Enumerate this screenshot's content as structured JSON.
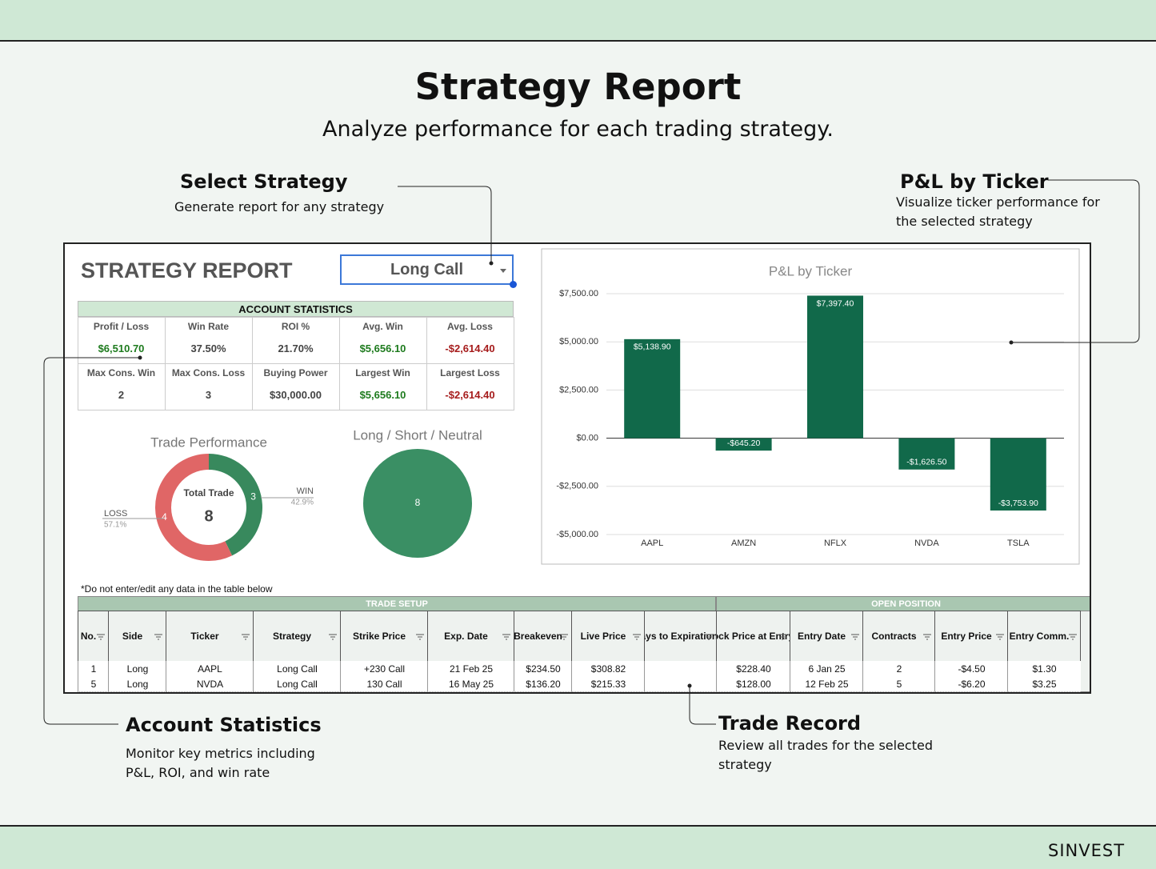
{
  "header": {
    "title": "Strategy Report",
    "subtitle": "Analyze performance for each trading strategy."
  },
  "callouts": [
    {
      "title": "Select Strategy",
      "text": "Generate report for any strategy"
    },
    {
      "title": "P&L by Ticker",
      "text": "Visualize ticker performance for the selected strategy"
    },
    {
      "title": "Account Statistics",
      "text": "Monitor key metrics including P&L, ROI, and win rate"
    },
    {
      "title": "Trade Record",
      "text": "Review all trades for the selected strategy"
    }
  ],
  "report": {
    "title": "STRATEGY REPORT",
    "strategy": "Long Call",
    "stats_title": "ACCOUNT STATISTICS",
    "stats": [
      [
        {
          "label": "Profit / Loss",
          "value": "$6,510.70",
          "color": "#1e7b1e"
        },
        {
          "label": "Win Rate",
          "value": "37.50%"
        },
        {
          "label": "ROI %",
          "value": "21.70%"
        },
        {
          "label": "Avg. Win",
          "value": "$5,656.10",
          "color": "#1e7b1e"
        },
        {
          "label": "Avg. Loss",
          "value": "-$2,614.40",
          "color": "#a61c1c"
        }
      ],
      [
        {
          "label": "Max Cons. Win",
          "value": "2"
        },
        {
          "label": "Max Cons. Loss",
          "value": "3"
        },
        {
          "label": "Buying Power",
          "value": "$30,000.00"
        },
        {
          "label": "Largest Win",
          "value": "$5,656.10",
          "color": "#1e7b1e"
        },
        {
          "label": "Largest Loss",
          "value": "-$2,614.40",
          "color": "#a61c1c"
        }
      ]
    ],
    "note": "*Do not enter/edit any data in the table below",
    "table": {
      "groups": [
        "TRADE SETUP",
        "OPEN POSITION"
      ],
      "columns": [
        "No.",
        "Side",
        "Ticker",
        "Strategy",
        "Strike Price",
        "Exp. Date",
        "Breakeven",
        "Live Price",
        "Days to Expiration",
        "Stock Price at Entry",
        "Entry Date",
        "Contracts",
        "Entry Price",
        "Entry Comm."
      ],
      "rows": [
        [
          "1",
          "Long",
          "AAPL",
          "Long Call",
          "+230 Call",
          "21 Feb 25",
          "$234.50",
          "$308.82",
          null,
          "$228.40",
          "6 Jan 25",
          "2",
          "-$4.50",
          "$1.30"
        ],
        [
          "5",
          "Long",
          "NVDA",
          "Long Call",
          "130 Call",
          "16 May 25",
          "$136.20",
          "$215.33",
          null,
          "$128.00",
          "12 Feb 25",
          "5",
          "-$6.20",
          "$3.25"
        ]
      ]
    }
  },
  "chart_data": [
    {
      "type": "donut",
      "title": "Trade Performance",
      "center_label": "Total Trade",
      "total": 8,
      "categories": [
        "WIN",
        "LOSS"
      ],
      "values": [
        3,
        4
      ],
      "shares": [
        "42.9%",
        "57.1%"
      ],
      "colors": [
        "#38895d",
        "#e06666"
      ]
    },
    {
      "type": "pie",
      "title": "Long / Short / Neutral",
      "values": [
        8
      ],
      "colors": [
        "#3a8f64"
      ]
    },
    {
      "type": "bar",
      "title": "P&L by Ticker",
      "categories": [
        "AAPL",
        "AMZN",
        "NFLX",
        "NVDA",
        "TSLA"
      ],
      "values": [
        5138.9,
        -645.2,
        7397.4,
        -1626.5,
        -3753.9
      ],
      "value_labels": [
        "$5,138.90",
        "-$645.20",
        "$7,397.40",
        "-$1,626.50",
        "-$3,753.90"
      ],
      "color": "#11694a",
      "ylim": [
        -5000,
        7500
      ],
      "yticks": [
        {
          "value": -5000,
          "label": "-$5,000.00"
        },
        {
          "value": -2500,
          "label": "-$2,500.00"
        },
        {
          "value": 0,
          "label": "$0.00"
        },
        {
          "value": 2500,
          "label": "$2,500.00"
        },
        {
          "value": 5000,
          "label": "$5,000.00"
        },
        {
          "value": 7500,
          "label": "$7,500.00"
        }
      ],
      "grid": true
    }
  ],
  "footer": {
    "brand": "SINVEST"
  }
}
